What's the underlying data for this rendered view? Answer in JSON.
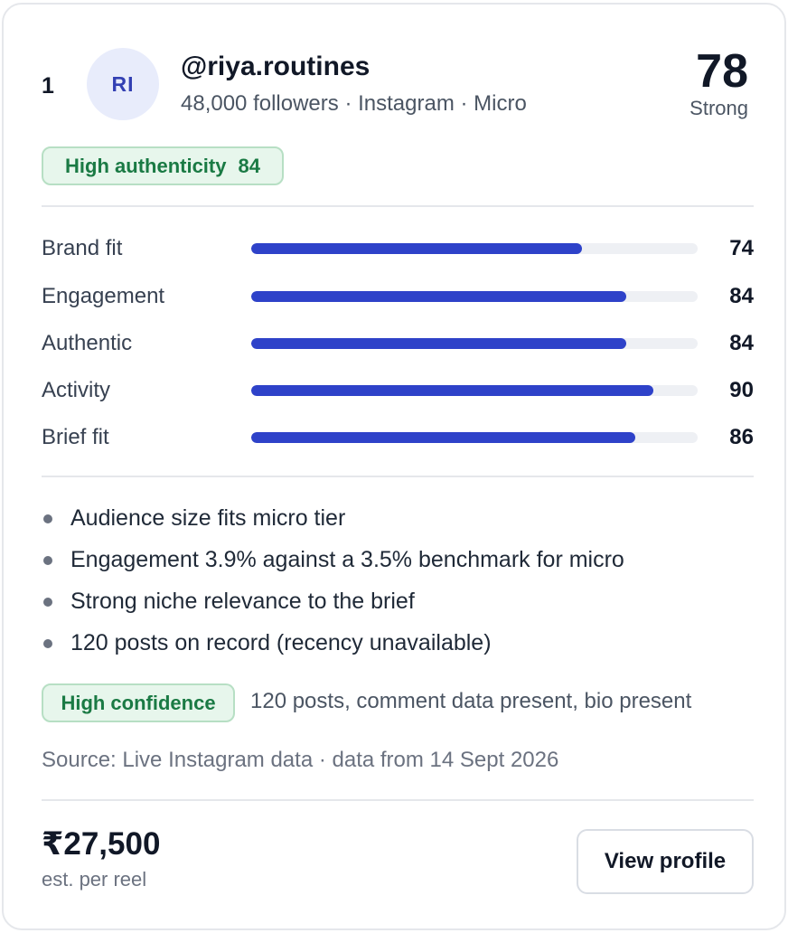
{
  "creator": {
    "rank": "1",
    "initials": "RI",
    "handle": "@riya.routines",
    "meta": "48,000 followers · Instagram · Micro"
  },
  "score": {
    "value": "78",
    "label": "Strong"
  },
  "authenticity_badge": {
    "label": "High authenticity",
    "value": "84"
  },
  "metrics": [
    {
      "label": "Brand fit",
      "value": "74",
      "fraction": 0.74
    },
    {
      "label": "Engagement",
      "value": "84",
      "fraction": 0.84
    },
    {
      "label": "Authentic",
      "value": "84",
      "fraction": 0.84
    },
    {
      "label": "Activity",
      "value": "90",
      "fraction": 0.9
    },
    {
      "label": "Brief fit",
      "value": "86",
      "fraction": 0.86
    }
  ],
  "reasons": [
    "Audience size fits micro tier",
    "Engagement 3.9% against a 3.5% benchmark for micro",
    "Strong niche relevance to the brief",
    "120 posts on record (recency unavailable)"
  ],
  "confidence": {
    "label": "High confidence",
    "detail": "120 posts, comment data present, bio present"
  },
  "source": "Source: Live Instagram data · data from 14 Sept 2026",
  "price": {
    "value": "₹27,500",
    "label": "est. per reel"
  },
  "actions": {
    "view_profile_label": "View profile"
  },
  "colors": {
    "accent": "#2e42c9",
    "badge_text": "#1a7a44",
    "badge_bg": "#e7f6ec",
    "avatar_bg": "#e8ecfb"
  }
}
